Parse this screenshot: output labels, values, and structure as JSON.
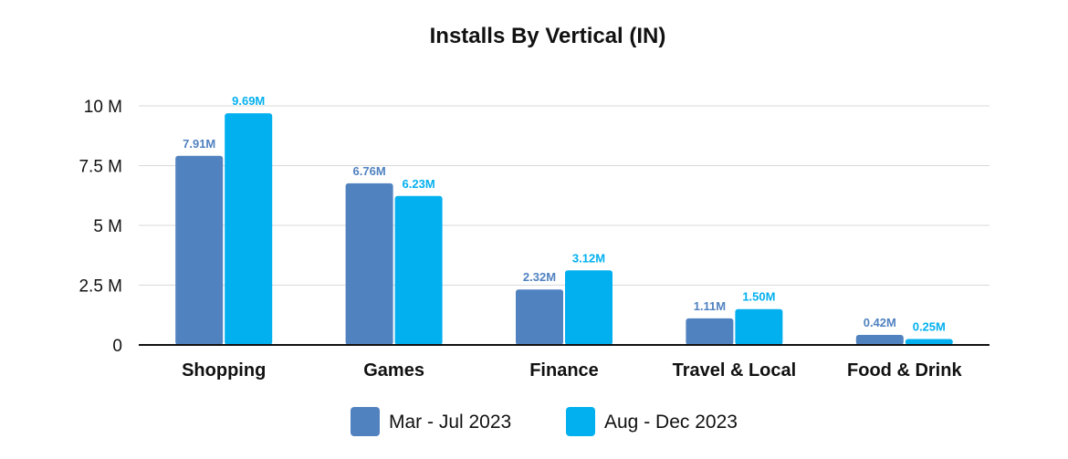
{
  "chart_data": {
    "type": "bar",
    "title": "Installs By Vertical (IN)",
    "xlabel": "",
    "ylabel": "",
    "ylim": [
      0,
      10000000
    ],
    "yticks": [
      0,
      2500000,
      5000000,
      7500000,
      10000000
    ],
    "ytick_labels": [
      "0",
      "2.5 M",
      "5 M",
      "7.5 M",
      "10 M"
    ],
    "categories": [
      "Shopping",
      "Games",
      "Finance",
      "Travel & Local",
      "Food & Drink"
    ],
    "grid": true,
    "legend_position": "bottom",
    "series": [
      {
        "name": "Mar - Jul 2023",
        "color": "#5182c0",
        "values": [
          7910000,
          6760000,
          2320000,
          1110000,
          420000
        ],
        "labels": [
          "7.91M",
          "6.76M",
          "2.32M",
          "1.11M",
          "0.42M"
        ]
      },
      {
        "name": "Aug - Dec 2023",
        "color": "#03b0ef",
        "values": [
          9690000,
          6230000,
          3120000,
          1500000,
          250000
        ],
        "labels": [
          "9.69M",
          "6.23M",
          "3.12M",
          "1.50M",
          "0.25M"
        ]
      }
    ]
  }
}
